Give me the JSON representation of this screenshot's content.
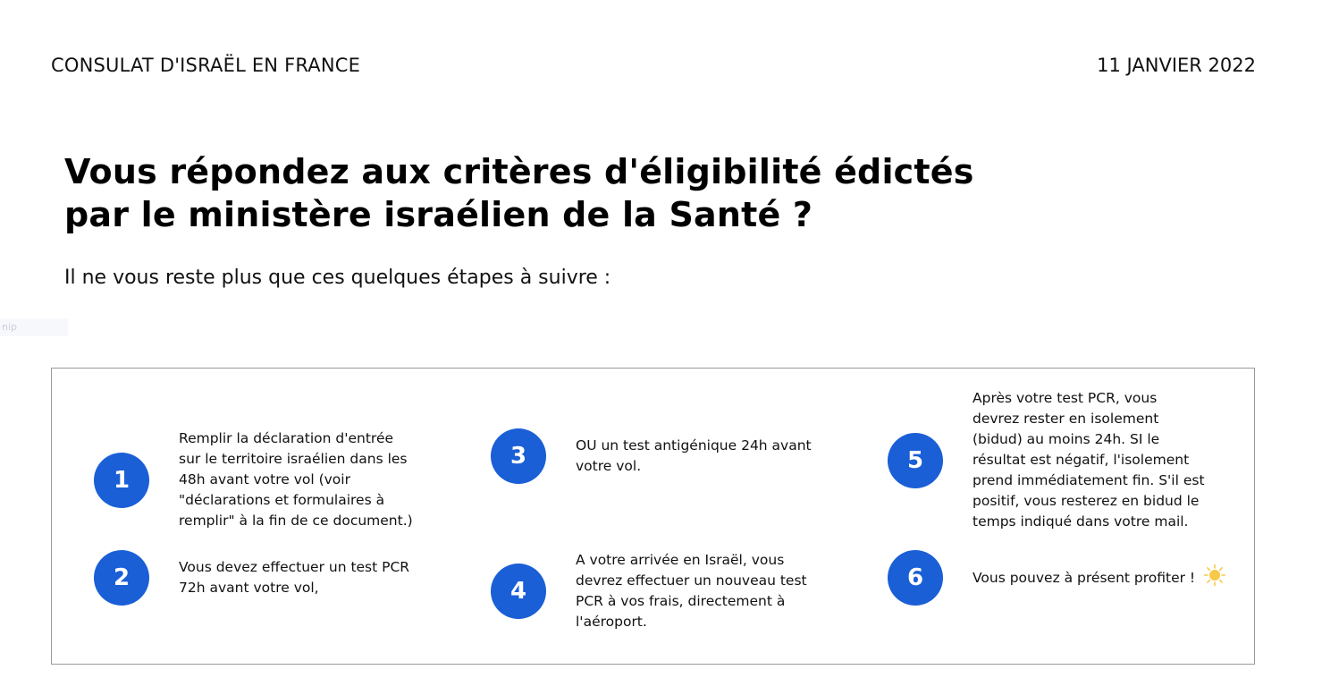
{
  "header": {
    "organization": "CONSULAT D'ISRAËL EN FRANCE",
    "date": "11 JANVIER 2022"
  },
  "title": "Vous répondez aux critères d'éligibilité édictés\npar le ministère israélien de la Santé ?",
  "subtitle": "Il ne vous reste plus que ces quelques étapes à suivre :",
  "ghost_label": "nip",
  "steps": [
    {
      "number": "1",
      "text": "Remplir la déclaration d'entrée\nsur le territoire israélien dans les\n48h avant votre vol (voir\n\"déclarations et formulaires à\nremplir\" à la fin de ce document.)"
    },
    {
      "number": "2",
      "text": "Vous devez effectuer un test PCR\n72h avant votre vol,"
    },
    {
      "number": "3",
      "text": "OU un test antigénique 24h avant\nvotre vol."
    },
    {
      "number": "4",
      "text": "A votre arrivée en Israël, vous\ndevrez effectuer un nouveau test\nPCR à vos frais, directement à\nl'aéroport."
    },
    {
      "number": "5",
      "text": "Après votre test PCR, vous\ndevrez rester en isolement\n(bidud) au moins 24h. SI le\nrésultat est négatif, l'isolement\nprend immédiatement fin. S'il est\npositif, vous resterez en bidud le\ntemps indiqué dans votre mail."
    },
    {
      "number": "6",
      "text": "Vous pouvez à présent profiter !",
      "icon": "sun-icon"
    }
  ],
  "colors": {
    "accent": "#1a5fd6",
    "border": "#9a9a9a",
    "sun": "#f7c948"
  }
}
